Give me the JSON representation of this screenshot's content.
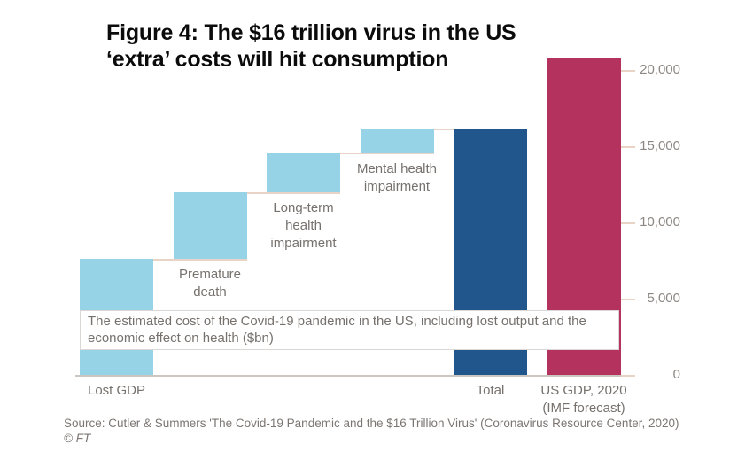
{
  "figure": {
    "title_line1": "Figure 4: The $16 trillion virus in the US",
    "title_line2": "‘extra’ costs will hit consumption",
    "annotation": "The estimated cost of the Covid-19 pandemic in the US, including lost output and the economic effect on health ($bn)",
    "source": "Source: Cutler & Summers 'The Covid-19 Pandemic and the $16 Trillion Virus' (Coronavirus Resource Center, 2020)",
    "copyright": "© FT"
  },
  "chart_data": {
    "type": "bar",
    "subtype": "waterfall",
    "title": "Figure 4: The $16 trillion virus in the US ‘extra’ costs will hit consumption",
    "subtitle": "The estimated cost of the Covid-19 pandemic in the US, including lost output and the economic effect on health ($bn)",
    "unit": "$bn",
    "xlabel": "",
    "ylabel": "",
    "ylim": [
      0,
      21000
    ],
    "y_ticks": [
      0,
      5000,
      10000,
      15000,
      20000
    ],
    "y_tick_labels": [
      "0",
      "5,000",
      "10,000",
      "15,000",
      "20,000"
    ],
    "gridlines": false,
    "legend": false,
    "axis_side": "right",
    "bars": [
      {
        "label": "Lost GDP",
        "label_lines": [
          "Lost GDP"
        ],
        "base": 0,
        "value": 7592,
        "cumulative": 7592,
        "color": "light_blue",
        "label_pos": "axis"
      },
      {
        "label": "Premature death",
        "label_lines": [
          "Premature",
          "death"
        ],
        "base": 7592,
        "value": 4375,
        "cumulative": 11967,
        "color": "light_blue",
        "label_pos": "below-bar"
      },
      {
        "label": "Long-term health impairment",
        "label_lines": [
          "Long-term",
          "health",
          "impairment"
        ],
        "base": 11967,
        "value": 2572,
        "cumulative": 14539,
        "color": "light_blue",
        "label_pos": "below-bar"
      },
      {
        "label": "Mental health impairment",
        "label_lines": [
          "Mental health",
          "impairment"
        ],
        "base": 14539,
        "value": 1581,
        "cumulative": 16120,
        "color": "light_blue",
        "label_pos": "below-bar"
      },
      {
        "label": "Total",
        "label_lines": [
          "Total"
        ],
        "base": 0,
        "value": 16121,
        "cumulative": 16121,
        "color": "dark_blue",
        "label_pos": "axis"
      },
      {
        "label": "US GDP, 2020 (IMF forecast)",
        "label_lines": [
          "US GDP, 2020",
          "(IMF forecast)"
        ],
        "base": 0,
        "value": 20800,
        "cumulative": 20800,
        "color": "crimson",
        "label_pos": "axis"
      }
    ],
    "connectors": [
      {
        "level": 7592,
        "from_bar": 0,
        "to_bar": 1
      },
      {
        "level": 11967,
        "from_bar": 1,
        "to_bar": 2
      },
      {
        "level": 14539,
        "from_bar": 2,
        "to_bar": 3
      },
      {
        "level": 16120,
        "from_bar": 3,
        "to_bar": 4
      }
    ],
    "colors": {
      "light_blue": "#96d3e6",
      "dark_blue": "#20568c",
      "crimson": "#b3325e"
    }
  }
}
